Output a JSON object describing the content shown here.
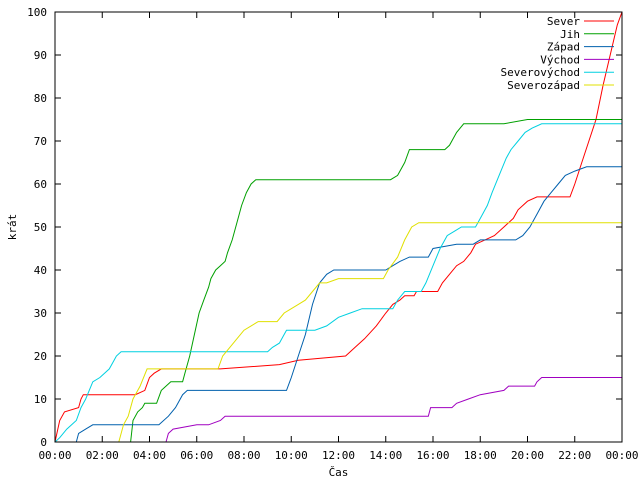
{
  "chart_data": {
    "type": "line",
    "xlabel": "Čas",
    "ylabel": "krát",
    "xlim": [
      0,
      24
    ],
    "ylim": [
      0,
      100
    ],
    "x_ticks": [
      {
        "value": 0,
        "label": "00:00"
      },
      {
        "value": 2,
        "label": "02:00"
      },
      {
        "value": 4,
        "label": "04:00"
      },
      {
        "value": 6,
        "label": "06:00"
      },
      {
        "value": 8,
        "label": "08:00"
      },
      {
        "value": 10,
        "label": "10:00"
      },
      {
        "value": 12,
        "label": "12:00"
      },
      {
        "value": 14,
        "label": "14:00"
      },
      {
        "value": 16,
        "label": "16:00"
      },
      {
        "value": 18,
        "label": "18:00"
      },
      {
        "value": 20,
        "label": "20:00"
      },
      {
        "value": 22,
        "label": "22:00"
      },
      {
        "value": 24,
        "label": "00:00"
      }
    ],
    "y_ticks": [
      0,
      10,
      20,
      30,
      40,
      50,
      60,
      70,
      80,
      90,
      100
    ],
    "grid": false,
    "legend_position": "top-right",
    "series": [
      {
        "name": "Sever",
        "color": "#ff0000",
        "points": [
          [
            0,
            0
          ],
          [
            0.2,
            5
          ],
          [
            0.4,
            7
          ],
          [
            1.0,
            8
          ],
          [
            1.1,
            10
          ],
          [
            1.2,
            11
          ],
          [
            3.4,
            11
          ],
          [
            3.8,
            12
          ],
          [
            4.0,
            15
          ],
          [
            4.2,
            16
          ],
          [
            4.5,
            17
          ],
          [
            7.0,
            17
          ],
          [
            9.5,
            18
          ],
          [
            10.3,
            19
          ],
          [
            12.3,
            20
          ],
          [
            12.7,
            22
          ],
          [
            13.1,
            24
          ],
          [
            13.6,
            27
          ],
          [
            14.0,
            30
          ],
          [
            14.3,
            32
          ],
          [
            14.6,
            33
          ],
          [
            14.8,
            34
          ],
          [
            15.2,
            34
          ],
          [
            15.3,
            35
          ],
          [
            16.2,
            35
          ],
          [
            16.4,
            37
          ],
          [
            16.7,
            39
          ],
          [
            17.0,
            41
          ],
          [
            17.3,
            42
          ],
          [
            17.6,
            44
          ],
          [
            17.8,
            46
          ],
          [
            18.2,
            47
          ],
          [
            18.6,
            48
          ],
          [
            19.0,
            50
          ],
          [
            19.4,
            52
          ],
          [
            19.6,
            54
          ],
          [
            20.0,
            56
          ],
          [
            20.4,
            57
          ],
          [
            21.8,
            57
          ],
          [
            22.0,
            60
          ],
          [
            22.3,
            65
          ],
          [
            22.6,
            70
          ],
          [
            22.9,
            75
          ],
          [
            23.2,
            83
          ],
          [
            23.5,
            90
          ],
          [
            23.8,
            97
          ],
          [
            24.0,
            100
          ]
        ]
      },
      {
        "name": "Jih",
        "color": "#00a000",
        "points": [
          [
            0,
            0
          ],
          [
            3.2,
            0
          ],
          [
            3.3,
            5
          ],
          [
            3.5,
            7
          ],
          [
            3.7,
            8
          ],
          [
            3.8,
            9
          ],
          [
            4.3,
            9
          ],
          [
            4.5,
            12
          ],
          [
            4.7,
            13
          ],
          [
            4.9,
            14
          ],
          [
            5.4,
            14
          ],
          [
            5.5,
            16
          ],
          [
            5.7,
            20
          ],
          [
            5.9,
            25
          ],
          [
            6.1,
            30
          ],
          [
            6.3,
            33
          ],
          [
            6.5,
            36
          ],
          [
            6.6,
            38
          ],
          [
            6.8,
            40
          ],
          [
            7.0,
            41
          ],
          [
            7.2,
            42
          ],
          [
            7.3,
            44
          ],
          [
            7.5,
            47
          ],
          [
            7.7,
            51
          ],
          [
            7.9,
            55
          ],
          [
            8.1,
            58
          ],
          [
            8.3,
            60
          ],
          [
            8.5,
            61
          ],
          [
            14.2,
            61
          ],
          [
            14.5,
            62
          ],
          [
            14.8,
            65
          ],
          [
            15.0,
            68
          ],
          [
            16.5,
            68
          ],
          [
            16.7,
            69
          ],
          [
            17.0,
            72
          ],
          [
            17.3,
            74
          ],
          [
            19.0,
            74
          ],
          [
            20.0,
            75
          ],
          [
            24.0,
            75
          ]
        ]
      },
      {
        "name": "Západ",
        "color": "#0060ad",
        "points": [
          [
            0,
            0
          ],
          [
            0.9,
            0
          ],
          [
            1.0,
            2
          ],
          [
            1.3,
            3
          ],
          [
            1.6,
            4
          ],
          [
            4.4,
            4
          ],
          [
            4.8,
            6
          ],
          [
            5.1,
            8
          ],
          [
            5.4,
            11
          ],
          [
            5.6,
            12
          ],
          [
            9.8,
            12
          ],
          [
            10.0,
            15
          ],
          [
            10.3,
            20
          ],
          [
            10.6,
            25
          ],
          [
            10.9,
            32
          ],
          [
            11.2,
            37
          ],
          [
            11.5,
            39
          ],
          [
            11.8,
            40
          ],
          [
            14.0,
            40
          ],
          [
            14.3,
            41
          ],
          [
            14.6,
            42
          ],
          [
            15.0,
            43
          ],
          [
            15.8,
            43
          ],
          [
            16.0,
            45
          ],
          [
            17.0,
            46
          ],
          [
            17.7,
            46
          ],
          [
            18.0,
            47
          ],
          [
            19.5,
            47
          ],
          [
            19.8,
            48
          ],
          [
            20.1,
            50
          ],
          [
            20.4,
            53
          ],
          [
            20.7,
            56
          ],
          [
            21.0,
            58
          ],
          [
            21.3,
            60
          ],
          [
            21.6,
            62
          ],
          [
            22.0,
            63
          ],
          [
            22.5,
            64
          ],
          [
            24.0,
            64
          ]
        ]
      },
      {
        "name": "Východ",
        "color": "#a000c0",
        "points": [
          [
            0,
            0
          ],
          [
            4.7,
            0
          ],
          [
            4.8,
            2
          ],
          [
            5.0,
            3
          ],
          [
            6.0,
            4
          ],
          [
            6.5,
            4
          ],
          [
            7.0,
            5
          ],
          [
            7.2,
            6
          ],
          [
            15.8,
            6
          ],
          [
            15.9,
            8
          ],
          [
            16.8,
            8
          ],
          [
            17.0,
            9
          ],
          [
            17.5,
            10
          ],
          [
            18.0,
            11
          ],
          [
            19.0,
            12
          ],
          [
            19.2,
            13
          ],
          [
            20.3,
            13
          ],
          [
            20.4,
            14
          ],
          [
            20.6,
            15
          ],
          [
            24.0,
            15
          ]
        ]
      },
      {
        "name": "Severovýchod",
        "color": "#00d0e0",
        "points": [
          [
            0,
            0
          ],
          [
            0.2,
            1
          ],
          [
            0.5,
            3
          ],
          [
            0.9,
            5
          ],
          [
            1.1,
            8
          ],
          [
            1.3,
            10
          ],
          [
            1.6,
            14
          ],
          [
            1.9,
            15
          ],
          [
            2.3,
            17
          ],
          [
            2.5,
            19
          ],
          [
            2.6,
            20
          ],
          [
            2.8,
            21
          ],
          [
            9.0,
            21
          ],
          [
            9.2,
            22
          ],
          [
            9.5,
            23
          ],
          [
            9.6,
            24
          ],
          [
            9.8,
            26
          ],
          [
            11.0,
            26
          ],
          [
            11.5,
            27
          ],
          [
            12.0,
            29
          ],
          [
            12.5,
            30
          ],
          [
            13.0,
            31
          ],
          [
            14.3,
            31
          ],
          [
            14.5,
            33
          ],
          [
            14.8,
            35
          ],
          [
            15.5,
            35
          ],
          [
            15.7,
            37
          ],
          [
            16.0,
            41
          ],
          [
            16.3,
            45
          ],
          [
            16.6,
            48
          ],
          [
            16.9,
            49
          ],
          [
            17.2,
            50
          ],
          [
            17.8,
            50
          ],
          [
            18.0,
            52
          ],
          [
            18.3,
            55
          ],
          [
            18.5,
            58
          ],
          [
            18.8,
            62
          ],
          [
            19.1,
            66
          ],
          [
            19.3,
            68
          ],
          [
            19.6,
            70
          ],
          [
            19.9,
            72
          ],
          [
            20.2,
            73
          ],
          [
            20.6,
            74
          ],
          [
            24.0,
            74
          ]
        ]
      },
      {
        "name": "Severozápad",
        "color": "#e0e000",
        "points": [
          [
            0,
            0
          ],
          [
            2.7,
            0
          ],
          [
            2.9,
            4
          ],
          [
            3.1,
            6
          ],
          [
            3.3,
            10
          ],
          [
            3.6,
            13
          ],
          [
            3.9,
            17
          ],
          [
            4.1,
            17
          ],
          [
            6.9,
            17
          ],
          [
            7.1,
            20
          ],
          [
            7.4,
            22
          ],
          [
            7.7,
            24
          ],
          [
            8.0,
            26
          ],
          [
            8.3,
            27
          ],
          [
            8.6,
            28
          ],
          [
            9.4,
            28
          ],
          [
            9.7,
            30
          ],
          [
            10.0,
            31
          ],
          [
            10.3,
            32
          ],
          [
            10.6,
            33
          ],
          [
            10.9,
            35
          ],
          [
            11.2,
            37
          ],
          [
            11.5,
            37
          ],
          [
            12.0,
            38
          ],
          [
            13.9,
            38
          ],
          [
            14.1,
            40
          ],
          [
            14.5,
            43
          ],
          [
            14.8,
            47
          ],
          [
            15.1,
            50
          ],
          [
            15.4,
            51
          ],
          [
            24.0,
            51
          ]
        ]
      }
    ]
  }
}
